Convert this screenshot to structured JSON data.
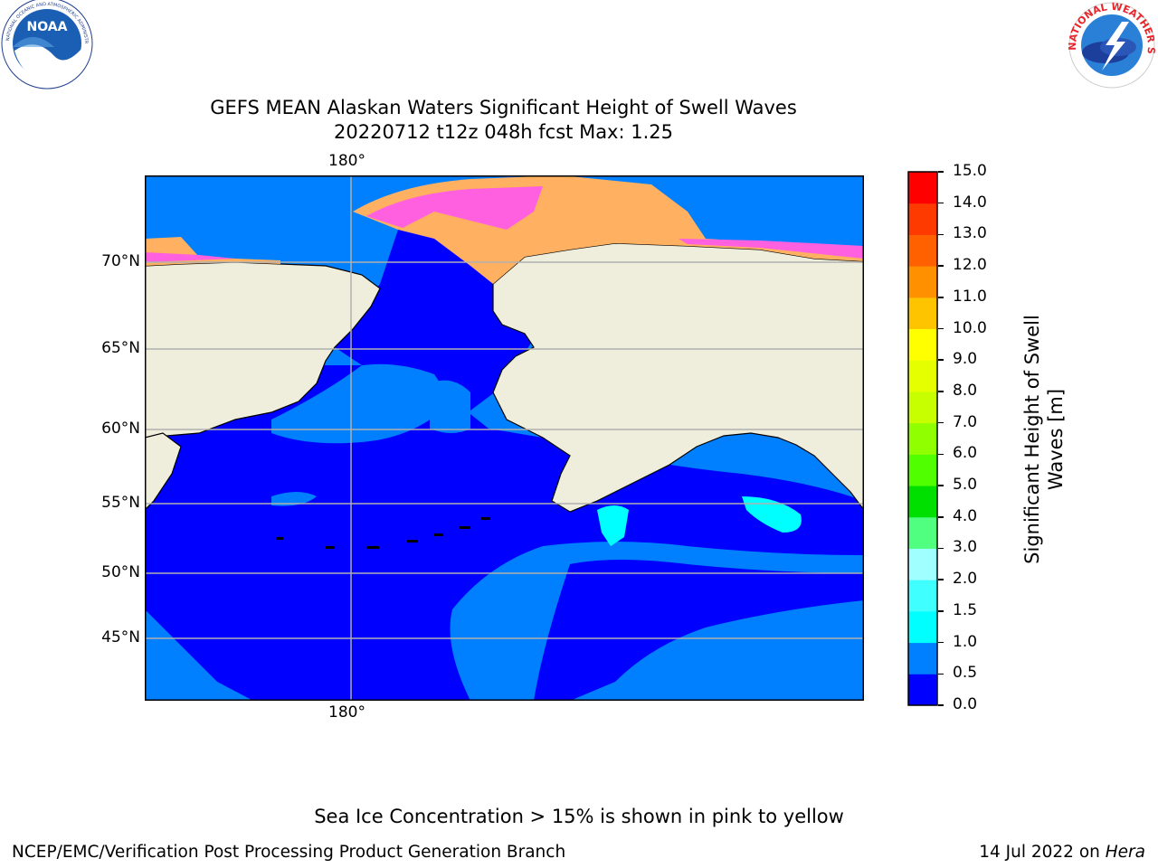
{
  "logos": {
    "left": {
      "name": "NOAA",
      "ring_text": "NATIONAL OCEANIC AND ATMOSPHERIC ADMINISTRATION · U.S. DEPARTMENT OF COMMERCE"
    },
    "right": {
      "name": "NATIONAL WEATHER SERVICE"
    }
  },
  "title": {
    "line1": "GEFS MEAN Alaskan Waters Significant Height of Swell Waves",
    "line2": "20220712 t12z 048h fcst   Max: 1.25"
  },
  "map": {
    "lon_label_top": "180°",
    "lon_label_bottom": "180°",
    "lat_labels": [
      "70°N",
      "65°N",
      "60°N",
      "55°N",
      "50°N",
      "45°N"
    ],
    "colors": {
      "land": "#efeedd",
      "ocean_low": "#0000ff",
      "ocean_mid": "#0080ff",
      "ocean_high": "#00ffff",
      "grid": "#b0b0b0"
    }
  },
  "colorbar": {
    "label_line1": "Significant Height of Swell",
    "label_line2": "Waves [m]",
    "ticks": [
      "0.0",
      "0.5",
      "1.0",
      "1.5",
      "2.0",
      "3.0",
      "4.0",
      "5.0",
      "6.0",
      "7.0",
      "8.0",
      "9.0",
      "10.0",
      "11.0",
      "12.0",
      "13.0",
      "14.0",
      "15.0"
    ],
    "colors": [
      "#0000ff",
      "#0080ff",
      "#00ffff",
      "#40ffff",
      "#a0ffff",
      "#50ff80",
      "#00e000",
      "#50ff00",
      "#90ff00",
      "#c8ff00",
      "#e6ff00",
      "#ffff00",
      "#ffc400",
      "#ff9000",
      "#ff6000",
      "#ff3a00",
      "#ff0000"
    ]
  },
  "footer": {
    "note": "Sea Ice Concentration > 15% is shown in pink to yellow",
    "left": "NCEP/EMC/Verification Post Processing Product Generation Branch",
    "right_prefix": "14 Jul 2022 on ",
    "right_host": "Hera"
  }
}
